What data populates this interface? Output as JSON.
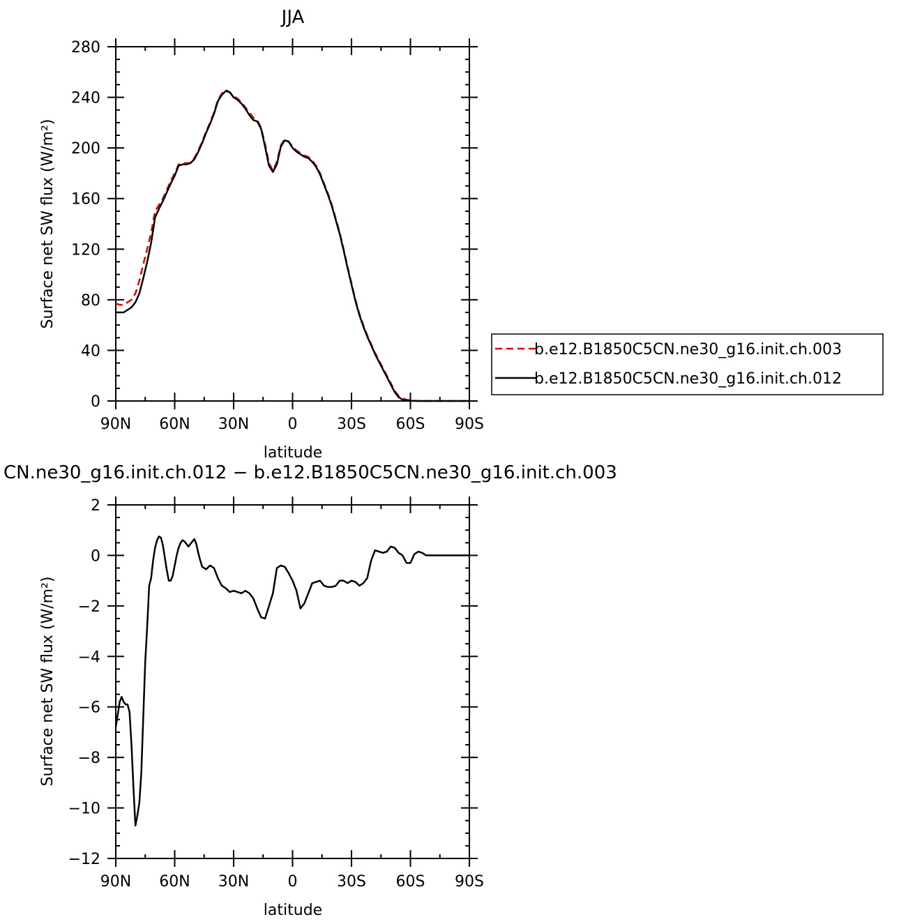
{
  "chart_data": [
    {
      "type": "line",
      "title": "JJA",
      "xlabel": "latitude",
      "ylabel": "Surface net SW flux (W/m²)",
      "xlim": [
        90,
        -90
      ],
      "ylim": [
        0,
        280
      ],
      "xticks": [
        90,
        60,
        30,
        0,
        -30,
        -60,
        -90
      ],
      "xtick_labels": [
        "90N",
        "60N",
        "30N",
        "0",
        "30S",
        "60S",
        "90S"
      ],
      "yticks": [
        0,
        40,
        80,
        120,
        160,
        200,
        240,
        280
      ],
      "ytick_labels": [
        "0",
        "40",
        "80",
        "120",
        "160",
        "200",
        "240",
        "280"
      ],
      "legend_position": "right",
      "series": [
        {
          "name": "b.e12.B1850C5CN.ne30_g16.init.ch.003",
          "color": "#e00000",
          "dash": "dashed",
          "x": [
            90,
            88,
            86,
            84,
            82,
            80,
            78,
            76,
            74,
            72,
            70,
            68,
            66,
            64,
            62,
            60,
            58,
            56,
            54,
            52,
            50,
            48,
            46,
            44,
            42,
            40,
            38,
            36,
            34,
            32,
            30,
            28,
            26,
            24,
            22,
            20,
            18,
            16,
            14,
            12,
            10,
            8,
            6,
            4,
            2,
            0,
            -2,
            -4,
            -6,
            -8,
            -10,
            -12,
            -14,
            -16,
            -18,
            -20,
            -22,
            -24,
            -26,
            -28,
            -30,
            -32,
            -34,
            -36,
            -38,
            -40,
            -42,
            -44,
            -46,
            -48,
            -50,
            -52,
            -54,
            -56,
            -58,
            -60,
            -62,
            -64,
            -66,
            -68,
            -70,
            -75,
            -80,
            -85,
            -90
          ],
          "y": [
            77,
            76,
            76,
            78,
            80,
            85,
            95,
            108,
            120,
            133,
            150,
            155,
            160,
            167,
            174,
            180,
            187,
            188,
            188,
            188,
            192,
            198,
            205,
            213,
            220,
            228,
            238,
            243,
            246,
            244,
            241,
            239,
            236,
            232,
            228,
            224,
            222,
            216,
            203,
            188,
            182,
            189,
            202,
            207,
            205,
            201,
            198,
            196,
            194,
            193,
            190,
            186,
            180,
            172,
            164,
            155,
            144,
            133,
            120,
            106,
            93,
            80,
            69,
            60,
            52,
            45,
            38,
            32,
            26,
            20,
            14,
            8,
            4,
            2,
            1,
            0.5,
            0.2,
            0.1,
            0,
            0,
            0,
            0,
            0,
            0,
            0
          ]
        },
        {
          "name": "b.e12.B1850C5CN.ne30_g16.init.ch.012",
          "color": "#000000",
          "dash": "solid",
          "x": [
            90,
            88,
            86,
            84,
            82,
            80,
            78,
            76,
            74,
            72,
            70,
            68,
            66,
            64,
            62,
            60,
            58,
            56,
            54,
            52,
            50,
            48,
            46,
            44,
            42,
            40,
            38,
            36,
            34,
            32,
            30,
            28,
            26,
            24,
            22,
            20,
            18,
            16,
            14,
            12,
            10,
            8,
            6,
            4,
            2,
            0,
            -2,
            -4,
            -6,
            -8,
            -10,
            -12,
            -14,
            -16,
            -18,
            -20,
            -22,
            -24,
            -26,
            -28,
            -30,
            -32,
            -34,
            -36,
            -38,
            -40,
            -42,
            -44,
            -46,
            -48,
            -50,
            -52,
            -54,
            -56,
            -58,
            -60,
            -62,
            -64,
            -66,
            -68,
            -70,
            -75,
            -80,
            -85,
            -90
          ],
          "y": [
            70,
            70,
            70,
            72,
            74,
            78,
            85,
            97,
            110,
            125,
            145,
            152,
            158,
            165,
            172,
            178,
            186,
            187,
            187,
            188,
            191,
            197,
            204,
            212,
            219,
            227,
            237,
            242,
            245,
            244,
            240,
            238,
            235,
            231,
            226,
            222,
            221,
            215,
            201,
            186,
            181,
            187,
            201,
            206,
            205,
            200,
            197,
            195,
            193,
            192,
            189,
            185,
            179,
            171,
            163,
            154,
            143,
            132,
            119,
            105,
            92,
            79,
            68,
            59,
            51,
            44,
            37,
            31,
            25,
            19,
            13,
            7,
            3,
            1,
            0.5,
            0.2,
            0.1,
            0,
            0,
            0,
            0,
            0,
            0,
            0,
            0
          ]
        }
      ]
    },
    {
      "type": "line",
      "title": "CN.ne30_g16.init.ch.012 − b.e12.B1850C5CN.ne30_g16.init.ch.003",
      "xlabel": "latitude",
      "ylabel": "Surface net SW flux (W/m²)",
      "xlim": [
        90,
        -90
      ],
      "ylim": [
        -12,
        2
      ],
      "xticks": [
        90,
        60,
        30,
        0,
        -30,
        -60,
        -90
      ],
      "xtick_labels": [
        "90N",
        "60N",
        "30N",
        "0",
        "30S",
        "60S",
        "90S"
      ],
      "yticks": [
        -12,
        -10,
        -8,
        -6,
        -4,
        -2,
        0,
        2
      ],
      "ytick_labels": [
        "−12",
        "−10",
        "−8",
        "−6",
        "−4",
        "−2",
        "0",
        "2"
      ],
      "series": [
        {
          "color": "#000000",
          "dash": "solid",
          "x": [
            90,
            89,
            88,
            87,
            86,
            85,
            84,
            83,
            82,
            81,
            80,
            79,
            78,
            77,
            76,
            75,
            74,
            73,
            72,
            71,
            70,
            69,
            68,
            67,
            66,
            65,
            64,
            63,
            62,
            61,
            60,
            59,
            58,
            57,
            56,
            55,
            54,
            53,
            52,
            51,
            50,
            49,
            48,
            47,
            46,
            45,
            44,
            42,
            40,
            38,
            36,
            34,
            32,
            30,
            28,
            26,
            24,
            22,
            20,
            18,
            16,
            14,
            12,
            10,
            8,
            6,
            4,
            2,
            0,
            -2,
            -4,
            -6,
            -8,
            -10,
            -12,
            -14,
            -16,
            -18,
            -20,
            -22,
            -24,
            -26,
            -28,
            -30,
            -32,
            -34,
            -36,
            -38,
            -40,
            -42,
            -44,
            -46,
            -48,
            -50,
            -52,
            -54,
            -56,
            -58,
            -60,
            -62,
            -64,
            -66,
            -68,
            -70,
            -75,
            -80,
            -85,
            -90
          ],
          "y": [
            -6.8,
            -6.3,
            -5.8,
            -5.6,
            -5.8,
            -5.9,
            -5.9,
            -6.2,
            -7.5,
            -9.2,
            -10.7,
            -10.3,
            -9.8,
            -8.6,
            -6.4,
            -4.2,
            -2.8,
            -1.2,
            -0.9,
            -0.2,
            0.3,
            0.6,
            0.75,
            0.7,
            0.4,
            -0.1,
            -0.6,
            -1.0,
            -1.0,
            -0.8,
            -0.4,
            0.0,
            0.3,
            0.5,
            0.6,
            0.55,
            0.45,
            0.35,
            0.45,
            0.55,
            0.65,
            0.45,
            0.1,
            -0.2,
            -0.45,
            -0.5,
            -0.55,
            -0.4,
            -0.5,
            -0.9,
            -1.2,
            -1.3,
            -1.45,
            -1.4,
            -1.45,
            -1.5,
            -1.4,
            -1.5,
            -1.7,
            -2.1,
            -2.45,
            -2.5,
            -2.0,
            -1.5,
            -0.5,
            -0.4,
            -0.45,
            -0.7,
            -1.0,
            -1.4,
            -2.1,
            -1.9,
            -1.5,
            -1.1,
            -1.05,
            -1.0,
            -1.2,
            -1.25,
            -1.25,
            -1.2,
            -1.0,
            -1.0,
            -1.1,
            -1.0,
            -1.05,
            -1.2,
            -1.1,
            -0.9,
            -0.2,
            0.2,
            0.15,
            0.1,
            0.15,
            0.35,
            0.3,
            0.1,
            0.0,
            -0.3,
            -0.3,
            0.05,
            0.15,
            0.1,
            0.0,
            0.0,
            0.0,
            0.0,
            0.0,
            0.0
          ]
        }
      ]
    }
  ]
}
